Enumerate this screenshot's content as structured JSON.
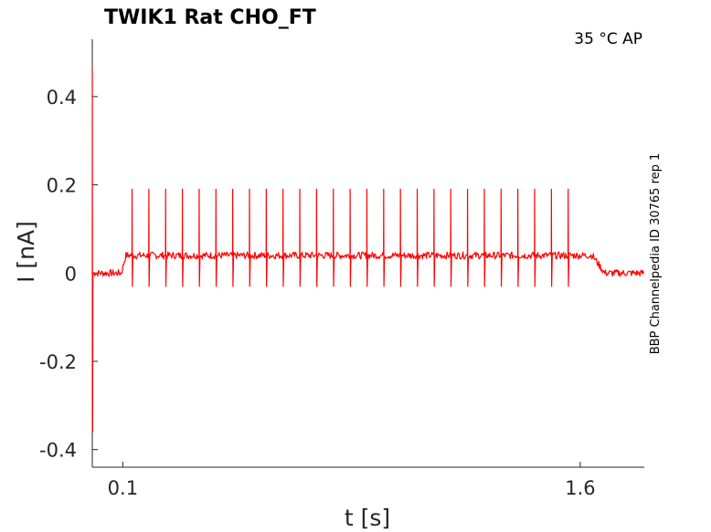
{
  "chart_data": {
    "type": "line",
    "title": "TWIK1  Rat  CHO_FT",
    "condition": "35 °C  AP",
    "side_label": "BBP Channelpedia ID 30765 rep 1",
    "xlabel": "t [s]",
    "ylabel": "I [nA]",
    "xlim": [
      -0.0,
      1.81
    ],
    "ylim": [
      -0.44,
      0.53
    ],
    "x_ticks": [
      {
        "value": 0.1,
        "label": "0.1"
      },
      {
        "value": 1.6,
        "label": "1.6"
      }
    ],
    "y_ticks": [
      {
        "value": 0.4,
        "label": "0.4"
      },
      {
        "value": 0.2,
        "label": "0.2"
      },
      {
        "value": 0.0,
        "label": "0"
      },
      {
        "value": -0.2,
        "label": "-0.2"
      },
      {
        "value": -0.4,
        "label": "-0.4"
      }
    ],
    "grid": false,
    "series": [
      {
        "color": "#ff0000",
        "baseline_before": 0.0,
        "plateau": 0.04,
        "plateau_start": 0.11,
        "plateau_end": 1.64,
        "baseline_after": 0.0,
        "onset_transient": {
          "t": 0.0,
          "max": 0.46,
          "min": -0.36
        },
        "spike_peak": 0.19,
        "spike_trough": -0.03,
        "spike_times": [
          0.13,
          0.185,
          0.24,
          0.295,
          0.35,
          0.405,
          0.46,
          0.515,
          0.57,
          0.625,
          0.68,
          0.735,
          0.79,
          0.845,
          0.9,
          0.955,
          1.01,
          1.065,
          1.12,
          1.175,
          1.23,
          1.285,
          1.34,
          1.395,
          1.45,
          1.505,
          1.56
        ]
      }
    ]
  }
}
